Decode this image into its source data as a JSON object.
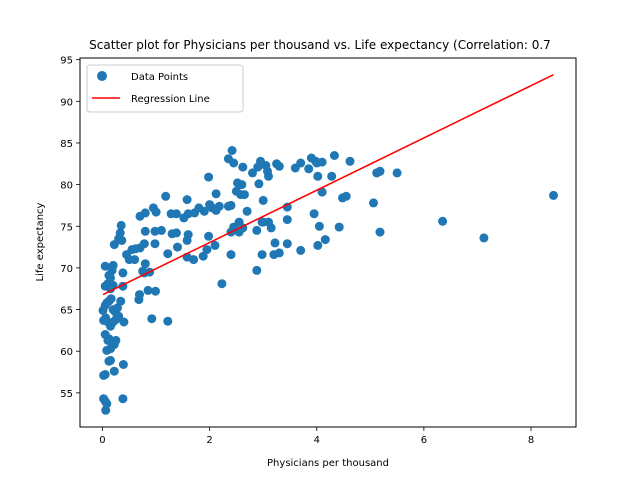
{
  "chart_data": {
    "type": "scatter",
    "title": "Scatter plot for Physicians per thousand vs. Life expectancy (Correlation: 0.7",
    "xlabel": "Physicians per thousand",
    "ylabel": "Life expectancy",
    "xlim": [
      -0.42,
      8.84
    ],
    "ylim": [
      50.9,
      95.2
    ],
    "xticks": [
      0,
      2,
      4,
      6,
      8
    ],
    "yticks": [
      55,
      60,
      65,
      70,
      75,
      80,
      85,
      90,
      95
    ],
    "grid": false,
    "legend": {
      "placement": "top-left",
      "entries": [
        "Data Points",
        "Regression Line"
      ]
    },
    "colors": {
      "points": "#1f77b4",
      "regression": "#ff0000"
    },
    "regression_line": {
      "x": [
        0.01,
        8.42
      ],
      "y": [
        66.8,
        93.2
      ]
    },
    "series": [
      {
        "name": "Data Points",
        "points": [
          [
            0.02,
            54.3
          ],
          [
            0.05,
            54.0
          ],
          [
            0.06,
            52.9
          ],
          [
            0.08,
            53.7
          ],
          [
            0.38,
            54.3
          ],
          [
            0.02,
            57.1
          ],
          [
            0.05,
            57.2
          ],
          [
            0.15,
            58.9
          ],
          [
            0.12,
            58.8
          ],
          [
            0.22,
            57.6
          ],
          [
            0.39,
            58.4
          ],
          [
            0.08,
            60.1
          ],
          [
            0.1,
            61.3
          ],
          [
            0.12,
            61.5
          ],
          [
            0.15,
            60.3
          ],
          [
            0.18,
            61.0
          ],
          [
            0.22,
            60.8
          ],
          [
            0.25,
            61.3
          ],
          [
            0.05,
            62.0
          ],
          [
            0.02,
            63.7
          ],
          [
            0.06,
            64.0
          ],
          [
            0.1,
            63.5
          ],
          [
            0.15,
            63.0
          ],
          [
            0.2,
            63.5
          ],
          [
            0.25,
            63.8
          ],
          [
            0.3,
            64.2
          ],
          [
            0.4,
            63.5
          ],
          [
            0.92,
            63.9
          ],
          [
            1.22,
            63.6
          ],
          [
            0.01,
            64.9
          ],
          [
            0.05,
            65.5
          ],
          [
            0.08,
            65.8
          ],
          [
            0.12,
            66.0
          ],
          [
            0.16,
            66.3
          ],
          [
            0.2,
            65.0
          ],
          [
            0.24,
            64.7
          ],
          [
            0.28,
            65.2
          ],
          [
            0.34,
            66.0
          ],
          [
            0.05,
            67.8
          ],
          [
            0.1,
            68.1
          ],
          [
            0.15,
            67.5
          ],
          [
            0.2,
            67.9
          ],
          [
            0.38,
            67.8
          ],
          [
            0.68,
            66.2
          ],
          [
            0.69,
            66.8
          ],
          [
            0.85,
            67.3
          ],
          [
            0.99,
            67.2
          ],
          [
            2.23,
            68.1
          ],
          [
            0.05,
            70.2
          ],
          [
            0.12,
            69.1
          ],
          [
            0.15,
            68.8
          ],
          [
            0.2,
            70.3
          ],
          [
            0.18,
            69.7
          ],
          [
            0.38,
            69.4
          ],
          [
            0.75,
            69.6
          ],
          [
            0.78,
            69.4
          ],
          [
            0.88,
            69.5
          ],
          [
            0.8,
            70.5
          ],
          [
            2.88,
            69.7
          ],
          [
            0.22,
            72.8
          ],
          [
            0.3,
            73.5
          ],
          [
            0.36,
            73.3
          ],
          [
            0.45,
            71.6
          ],
          [
            0.5,
            71.0
          ],
          [
            0.55,
            72.2
          ],
          [
            0.6,
            71.0
          ],
          [
            0.62,
            72.3
          ],
          [
            0.7,
            72.4
          ],
          [
            0.78,
            72.9
          ],
          [
            0.98,
            72.9
          ],
          [
            1.22,
            71.7
          ],
          [
            1.4,
            72.5
          ],
          [
            1.58,
            71.3
          ],
          [
            1.7,
            71.0
          ],
          [
            1.88,
            71.4
          ],
          [
            1.95,
            72.2
          ],
          [
            2.1,
            72.7
          ],
          [
            2.4,
            71.6
          ],
          [
            2.98,
            71.6
          ],
          [
            3.3,
            71.8
          ],
          [
            3.2,
            71.6
          ],
          [
            3.7,
            72.1
          ],
          [
            4.02,
            72.7
          ],
          [
            7.12,
            73.6
          ],
          [
            0.33,
            74.2
          ],
          [
            0.35,
            75.1
          ],
          [
            0.8,
            74.4
          ],
          [
            0.98,
            74.4
          ],
          [
            1.1,
            74.5
          ],
          [
            1.3,
            74.1
          ],
          [
            1.38,
            74.2
          ],
          [
            1.58,
            73.3
          ],
          [
            1.6,
            74.0
          ],
          [
            1.98,
            73.8
          ],
          [
            2.45,
            74.9
          ],
          [
            2.4,
            74.3
          ],
          [
            2.55,
            74.3
          ],
          [
            2.62,
            74.8
          ],
          [
            2.88,
            74.5
          ],
          [
            3.22,
            73.0
          ],
          [
            3.45,
            72.9
          ],
          [
            4.16,
            73.4
          ],
          [
            4.42,
            74.9
          ],
          [
            5.18,
            74.3
          ],
          [
            6.35,
            75.6
          ],
          [
            0.7,
            76.2
          ],
          [
            0.8,
            76.6
          ],
          [
            0.95,
            77.2
          ],
          [
            1.0,
            76.7
          ],
          [
            1.28,
            76.5
          ],
          [
            1.38,
            76.5
          ],
          [
            1.52,
            76.0
          ],
          [
            1.6,
            76.5
          ],
          [
            1.72,
            76.6
          ],
          [
            1.8,
            77.2
          ],
          [
            1.9,
            76.8
          ],
          [
            2.0,
            77.6
          ],
          [
            2.05,
            77.2
          ],
          [
            2.12,
            76.9
          ],
          [
            2.18,
            77.4
          ],
          [
            2.35,
            77.4
          ],
          [
            2.4,
            77.5
          ],
          [
            2.55,
            75.5
          ],
          [
            2.7,
            76.8
          ],
          [
            2.98,
            75.5
          ],
          [
            3.0,
            75.5
          ],
          [
            3.1,
            75.5
          ],
          [
            3.15,
            74.8
          ],
          [
            3.45,
            75.8
          ],
          [
            3.45,
            77.3
          ],
          [
            3.95,
            76.5
          ],
          [
            4.05,
            75.0
          ],
          [
            5.06,
            77.8
          ],
          [
            1.18,
            78.6
          ],
          [
            1.58,
            78.2
          ],
          [
            2.12,
            78.9
          ],
          [
            2.5,
            79.2
          ],
          [
            2.58,
            78.8
          ],
          [
            2.6,
            80.0
          ],
          [
            2.52,
            80.2
          ],
          [
            2.65,
            78.8
          ],
          [
            2.92,
            80.1
          ],
          [
            3.0,
            78.1
          ],
          [
            4.1,
            79.1
          ],
          [
            4.48,
            78.4
          ],
          [
            4.55,
            78.6
          ],
          [
            1.98,
            80.9
          ],
          [
            2.62,
            82.1
          ],
          [
            2.8,
            81.4
          ],
          [
            2.9,
            82.1
          ],
          [
            2.95,
            82.8
          ],
          [
            3.05,
            82.3
          ],
          [
            3.08,
            81.6
          ],
          [
            3.1,
            81.0
          ],
          [
            3.25,
            82.5
          ],
          [
            3.3,
            82.2
          ],
          [
            3.6,
            82.0
          ],
          [
            3.7,
            82.6
          ],
          [
            3.85,
            81.9
          ],
          [
            3.9,
            83.2
          ],
          [
            3.98,
            82.8
          ],
          [
            4.0,
            82.6
          ],
          [
            4.02,
            81.0
          ],
          [
            4.1,
            82.7
          ],
          [
            4.28,
            81.0
          ],
          [
            4.33,
            83.5
          ],
          [
            4.62,
            82.8
          ],
          [
            5.12,
            81.4
          ],
          [
            5.18,
            81.6
          ],
          [
            5.5,
            81.4
          ],
          [
            2.35,
            83.1
          ],
          [
            2.42,
            84.1
          ],
          [
            2.45,
            82.6
          ],
          [
            8.42,
            78.7
          ]
        ]
      }
    ]
  }
}
